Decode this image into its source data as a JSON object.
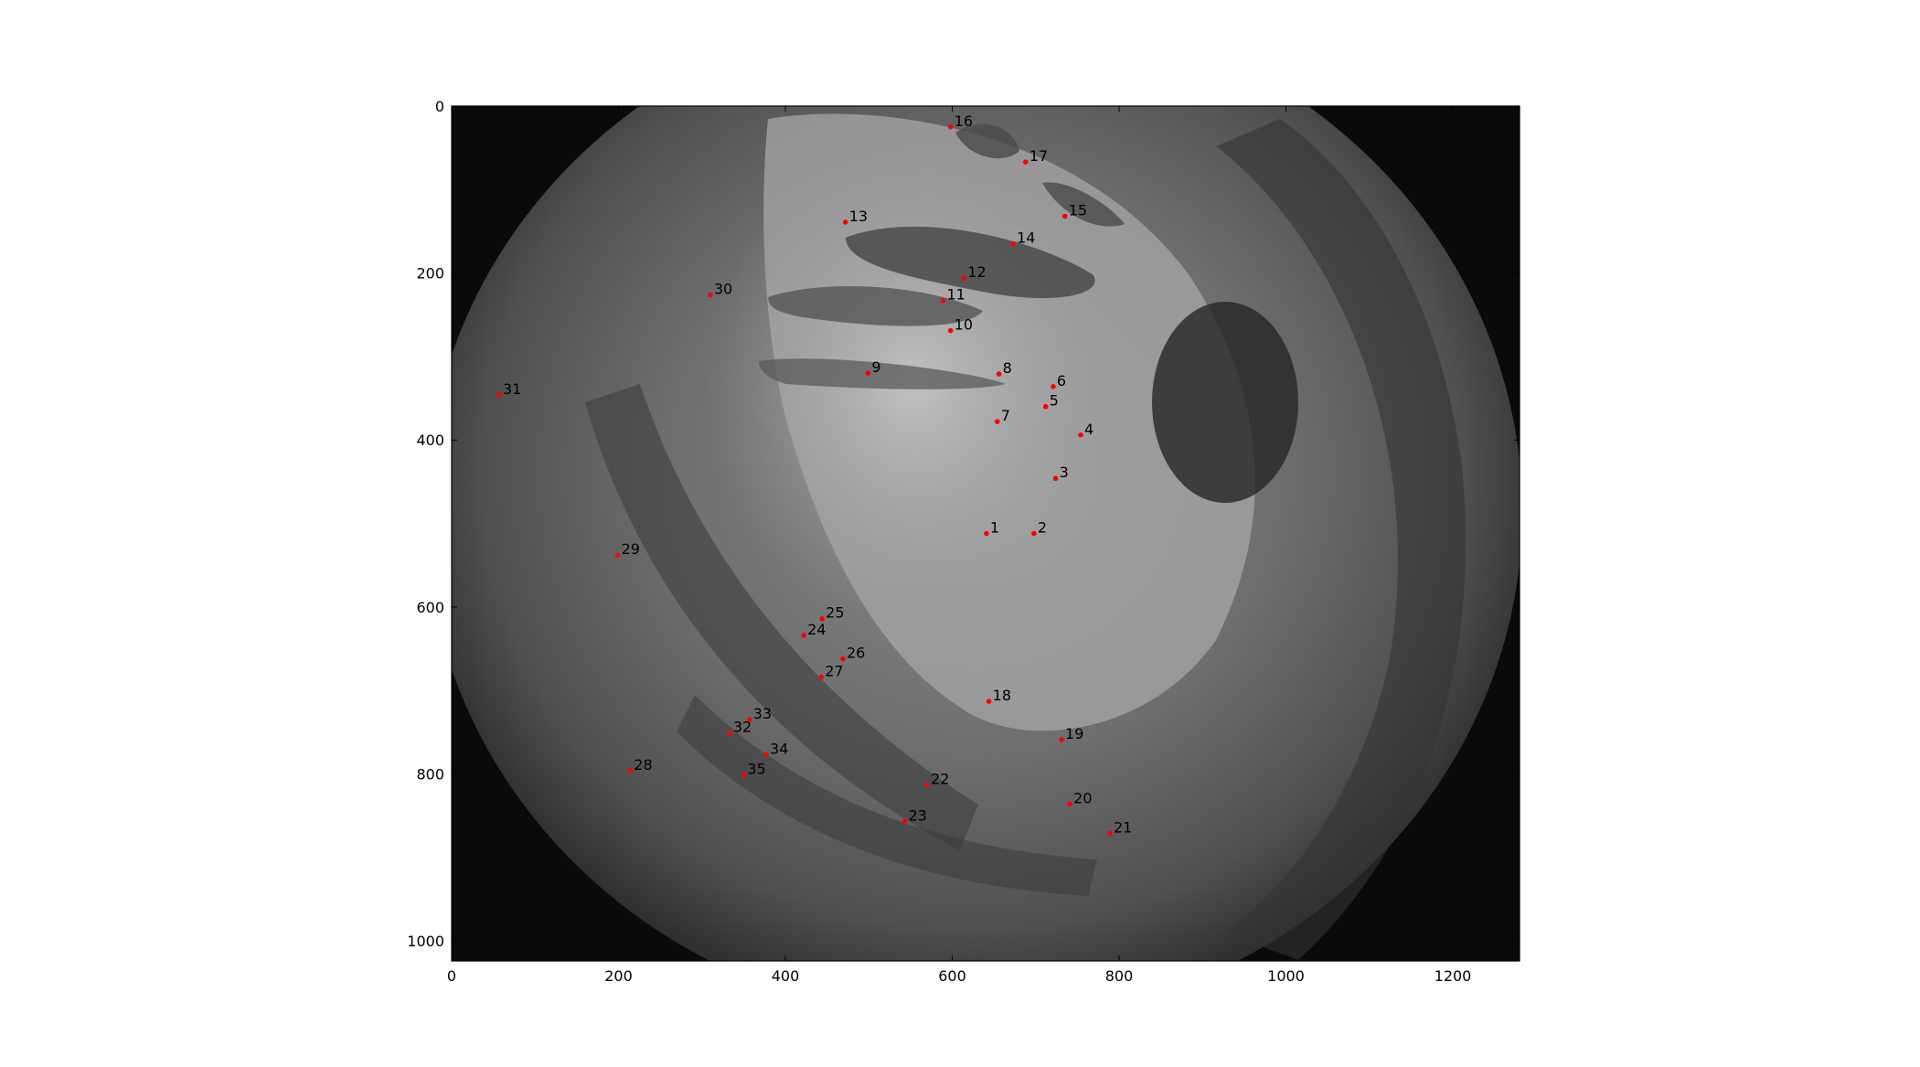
{
  "chart_data": {
    "type": "scatter",
    "title": "",
    "xlabel": "",
    "ylabel": "",
    "xlim": [
      0,
      1280
    ],
    "ylim": [
      1024,
      0
    ],
    "y_inverted": true,
    "x_ticks": [
      "0",
      "200",
      "400",
      "600",
      "800",
      "1000",
      "1200"
    ],
    "y_ticks": [
      "0",
      "200",
      "400",
      "600",
      "800",
      "1000"
    ],
    "background": "grayscale fisheye camera image of tokamak vessel interior",
    "marker_color": "#ff0000",
    "points": [
      {
        "label": "1",
        "x": 641,
        "y": 512
      },
      {
        "label": "2",
        "x": 698,
        "y": 512
      },
      {
        "label": "3",
        "x": 724,
        "y": 446
      },
      {
        "label": "4",
        "x": 754,
        "y": 394
      },
      {
        "label": "5",
        "x": 712,
        "y": 360
      },
      {
        "label": "6",
        "x": 721,
        "y": 336
      },
      {
        "label": "7",
        "x": 654,
        "y": 378
      },
      {
        "label": "8",
        "x": 656,
        "y": 321
      },
      {
        "label": "9",
        "x": 499,
        "y": 320
      },
      {
        "label": "10",
        "x": 598,
        "y": 269
      },
      {
        "label": "11",
        "x": 589,
        "y": 233
      },
      {
        "label": "12",
        "x": 614,
        "y": 206
      },
      {
        "label": "13",
        "x": 472,
        "y": 139
      },
      {
        "label": "14",
        "x": 673,
        "y": 165
      },
      {
        "label": "15",
        "x": 735,
        "y": 132
      },
      {
        "label": "16",
        "x": 598,
        "y": 25
      },
      {
        "label": "17",
        "x": 688,
        "y": 67
      },
      {
        "label": "18",
        "x": 644,
        "y": 713
      },
      {
        "label": "19",
        "x": 731,
        "y": 759
      },
      {
        "label": "20",
        "x": 741,
        "y": 836
      },
      {
        "label": "21",
        "x": 789,
        "y": 871
      },
      {
        "label": "22",
        "x": 570,
        "y": 813
      },
      {
        "label": "23",
        "x": 543,
        "y": 857
      },
      {
        "label": "24",
        "x": 422,
        "y": 634
      },
      {
        "label": "25",
        "x": 444,
        "y": 614
      },
      {
        "label": "26",
        "x": 469,
        "y": 662
      },
      {
        "label": "27",
        "x": 443,
        "y": 684
      },
      {
        "label": "28",
        "x": 214,
        "y": 796
      },
      {
        "label": "29",
        "x": 199,
        "y": 538
      },
      {
        "label": "30",
        "x": 310,
        "y": 226
      },
      {
        "label": "31",
        "x": 57,
        "y": 346
      },
      {
        "label": "32",
        "x": 333,
        "y": 751
      },
      {
        "label": "33",
        "x": 357,
        "y": 735
      },
      {
        "label": "34",
        "x": 377,
        "y": 777
      },
      {
        "label": "35",
        "x": 350,
        "y": 801
      }
    ]
  }
}
